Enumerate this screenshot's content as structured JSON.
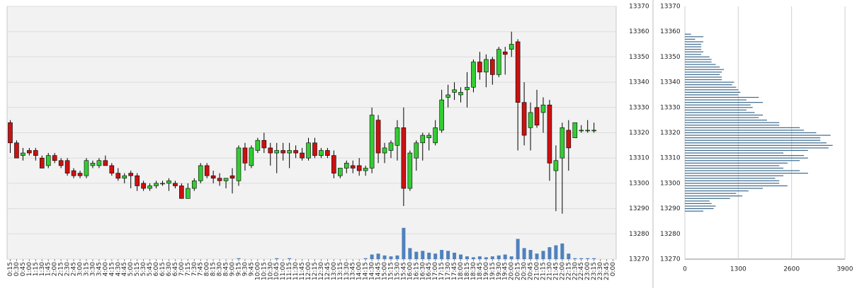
{
  "chart_data": [
    {
      "type": "candlestick",
      "categories": [
        "0:15",
        "0:30",
        "0:45",
        "1:00",
        "1:15",
        "1:30",
        "1:45",
        "2:00",
        "2:15",
        "2:30",
        "2:45",
        "3:00",
        "3:15",
        "3:30",
        "3:45",
        "4:00",
        "4:15",
        "4:30",
        "4:45",
        "5:00",
        "5:15",
        "5:30",
        "5:45",
        "6:00",
        "6:15",
        "6:30",
        "6:45",
        "7:00",
        "7:15",
        "7:30",
        "7:45",
        "8:00",
        "8:15",
        "8:30",
        "8:45",
        "9:00",
        "9:15",
        "9:30",
        "9:45",
        "10:00",
        "10:15",
        "10:30",
        "10:45",
        "11:00",
        "11:15",
        "11:30",
        "11:45",
        "12:00",
        "12:15",
        "12:30",
        "12:45",
        "13:00",
        "13:15",
        "13:30",
        "13:45",
        "14:00",
        "14:15",
        "14:30",
        "14:45",
        "15:00",
        "15:15",
        "15:30",
        "15:45",
        "16:00",
        "16:15",
        "16:30",
        "16:45",
        "17:00",
        "17:15",
        "17:30",
        "17:45",
        "18:00",
        "18:15",
        "18:30",
        "18:45",
        "19:00",
        "19:15",
        "19:30",
        "19:45",
        "20:00",
        "20:15",
        "20:30",
        "20:45",
        "21:00",
        "21:15",
        "21:30",
        "21:45",
        "22:00",
        "22:15",
        "22:30",
        "22:45",
        "23:00",
        "23:15",
        "23:30",
        "23:45",
        "0:00"
      ],
      "open": [
        13324,
        13316,
        13311,
        13313,
        13313,
        13310,
        13307,
        13311,
        13309,
        13309,
        13305,
        13304,
        13303,
        13307,
        13307,
        13309,
        13307,
        13304,
        13302,
        13304,
        13303,
        13300,
        13298,
        13299,
        13300,
        13300,
        13300,
        13299,
        13294,
        13298,
        13301,
        13307,
        13303,
        13302,
        13301,
        13303,
        13301,
        13314,
        13307,
        13313,
        13317,
        13314,
        13312,
        13313,
        13312,
        13313,
        13312,
        13310,
        13316,
        13311,
        13313,
        13311,
        13303,
        13306,
        13307,
        13307,
        13305,
        13306,
        13325,
        13312,
        13313,
        13315,
        13322,
        13298,
        13310,
        13316,
        13318,
        13316,
        13321,
        13334,
        13336,
        13335,
        13337,
        13338,
        13348,
        13344,
        13349,
        13343,
        13352,
        13353,
        13356,
        13332,
        13322,
        13330,
        13328,
        13331,
        13305,
        13310,
        13321,
        13318,
        13321,
        13321,
        13321,
        null,
        null,
        null
      ],
      "high": [
        13325,
        13317,
        13314,
        13314,
        13314,
        13311,
        13312,
        13312,
        13310,
        13310,
        13306,
        13305,
        13310,
        13309,
        13310,
        13311,
        13308,
        13306,
        13304,
        13305,
        13304,
        13301,
        13300,
        13301,
        13301,
        13302,
        13301,
        13300,
        13300,
        13302,
        13308,
        13308,
        13305,
        13304,
        13302,
        13306,
        13315,
        13316,
        13315,
        13318,
        13320,
        13316,
        13316,
        13316,
        13316,
        13315,
        13314,
        13318,
        13318,
        13314,
        13314,
        13313,
        13306,
        13309,
        13309,
        13310,
        13307,
        13330,
        13327,
        13316,
        13317,
        13325,
        13330,
        13313,
        13317,
        13320,
        13320,
        13325,
        13337,
        13339,
        13340,
        13338,
        13344,
        13349,
        13352,
        13351,
        13350,
        13354,
        13354,
        13360,
        13357,
        13340,
        13332,
        13337,
        13334,
        13333,
        13315,
        13324,
        13325,
        13324,
        13323,
        13325,
        13324,
        null,
        null,
        null
      ],
      "low": [
        13312,
        13310,
        13309,
        13311,
        13309,
        13306,
        13306,
        13308,
        13306,
        13303,
        13302,
        13302,
        13302,
        13306,
        13306,
        13307,
        13303,
        13301,
        13300,
        13298,
        13297,
        13297,
        13297,
        13298,
        13299,
        13297,
        13298,
        13294,
        13294,
        13297,
        13300,
        13302,
        13300,
        13299,
        13298,
        13296,
        13299,
        13305,
        13306,
        13312,
        13312,
        13307,
        13304,
        13309,
        13306,
        13310,
        13309,
        13309,
        13310,
        13310,
        13310,
        13302,
        13302,
        13304,
        13304,
        13303,
        13303,
        13304,
        13308,
        13308,
        13310,
        13309,
        13291,
        13297,
        13305,
        13309,
        13313,
        13315,
        13320,
        13330,
        13333,
        13332,
        13330,
        13336,
        13341,
        13338,
        13339,
        13342,
        13343,
        13350,
        13313,
        13315,
        13313,
        13322,
        13320,
        13301,
        13289,
        13288,
        13305,
        13318,
        13320,
        13320,
        13320,
        null,
        null,
        null
      ],
      "close": [
        13316,
        13310,
        13312,
        13312,
        13311,
        13306,
        13311,
        13309,
        13307,
        13304,
        13303,
        13303,
        13309,
        13308,
        13309,
        13307,
        13304,
        13302,
        13303,
        13303,
        13299,
        13298,
        13299,
        13300,
        13300,
        13301,
        13299,
        13294,
        13298,
        13301,
        13307,
        13303,
        13302,
        13301,
        13302,
        13302,
        13314,
        13308,
        13314,
        13317,
        13314,
        13312,
        13313,
        13312,
        13313,
        13312,
        13310,
        13316,
        13311,
        13313,
        13311,
        13304,
        13306,
        13308,
        13306,
        13305,
        13306,
        13327,
        13312,
        13314,
        13316,
        13322,
        13298,
        13312,
        13316,
        13319,
        13319,
        13322,
        13333,
        13335,
        13337,
        13336,
        13338,
        13348,
        13344,
        13349,
        13343,
        13353,
        13351,
        13355,
        13332,
        13319,
        13328,
        13323,
        13331,
        13308,
        13309,
        13322,
        13314,
        13324,
        13321,
        13321,
        13321,
        null,
        null,
        null
      ],
      "up_color": "#33cc33",
      "down_color": "#cc1111",
      "volume": {
        "color": "#4f81bd",
        "values": [
          0,
          0,
          0,
          0,
          0,
          0,
          0,
          0,
          0,
          0,
          0,
          0,
          0,
          0,
          0,
          0,
          0,
          0,
          0,
          0,
          0,
          0,
          0,
          0,
          0,
          0,
          0,
          0,
          0,
          0,
          0,
          0,
          0,
          0,
          0,
          0,
          1,
          0,
          0,
          0,
          0,
          0,
          1,
          0,
          1,
          0,
          0,
          0,
          0,
          0,
          0,
          0,
          0,
          0,
          0,
          0,
          1,
          5,
          6,
          4,
          3,
          4,
          34,
          12,
          8,
          9,
          7,
          6,
          10,
          9,
          7,
          5,
          3,
          2,
          3,
          2,
          3,
          4,
          5,
          3,
          22,
          12,
          10,
          6,
          9,
          13,
          15,
          17,
          6,
          1,
          1,
          1,
          1,
          null,
          null,
          null
        ]
      },
      "ylim": [
        13270,
        13370
      ],
      "yticks": [
        13270,
        13280,
        13290,
        13300,
        13310,
        13320,
        13330,
        13340,
        13350,
        13360,
        13370
      ],
      "grid": true
    },
    {
      "type": "bar",
      "orientation": "horizontal",
      "y": [
        13289,
        13290,
        13291,
        13292,
        13293,
        13294,
        13295,
        13296,
        13297,
        13298,
        13299,
        13300,
        13301,
        13302,
        13303,
        13304,
        13305,
        13306,
        13307,
        13308,
        13309,
        13310,
        13311,
        13312,
        13313,
        13314,
        13315,
        13316,
        13317,
        13318,
        13319,
        13320,
        13321,
        13322,
        13323,
        13324,
        13325,
        13326,
        13327,
        13328,
        13329,
        13330,
        13331,
        13332,
        13333,
        13334,
        13335,
        13336,
        13337,
        13338,
        13339,
        13340,
        13341,
        13342,
        13343,
        13344,
        13345,
        13346,
        13347,
        13348,
        13349,
        13350,
        13351,
        13352,
        13353,
        13354,
        13355,
        13356,
        13357,
        13358,
        13359
      ],
      "values": [
        450,
        700,
        750,
        650,
        600,
        1100,
        1400,
        1250,
        1550,
        1900,
        2500,
        2300,
        2300,
        2200,
        2400,
        3000,
        2800,
        2400,
        2300,
        2500,
        2800,
        3000,
        2900,
        2400,
        3000,
        3500,
        3600,
        3450,
        3300,
        3300,
        3550,
        3200,
        2900,
        2800,
        2300,
        2300,
        2000,
        1800,
        1900,
        1700,
        1500,
        1650,
        1600,
        1900,
        1500,
        1800,
        1300,
        1350,
        1300,
        1250,
        1150,
        1200,
        900,
        900,
        850,
        900,
        950,
        850,
        750,
        650,
        650,
        600,
        400,
        450,
        400,
        400,
        400,
        450,
        250,
        450,
        150
      ],
      "color": "#3d6a8e",
      "xlim": [
        0,
        3900
      ],
      "xticks": [
        0,
        1300,
        2600,
        3900
      ],
      "ylim": [
        13270,
        13370
      ],
      "yticks": [
        13270,
        13280,
        13290,
        13300,
        13310,
        13320,
        13330,
        13340,
        13350,
        13360,
        13370
      ],
      "grid": true
    }
  ]
}
